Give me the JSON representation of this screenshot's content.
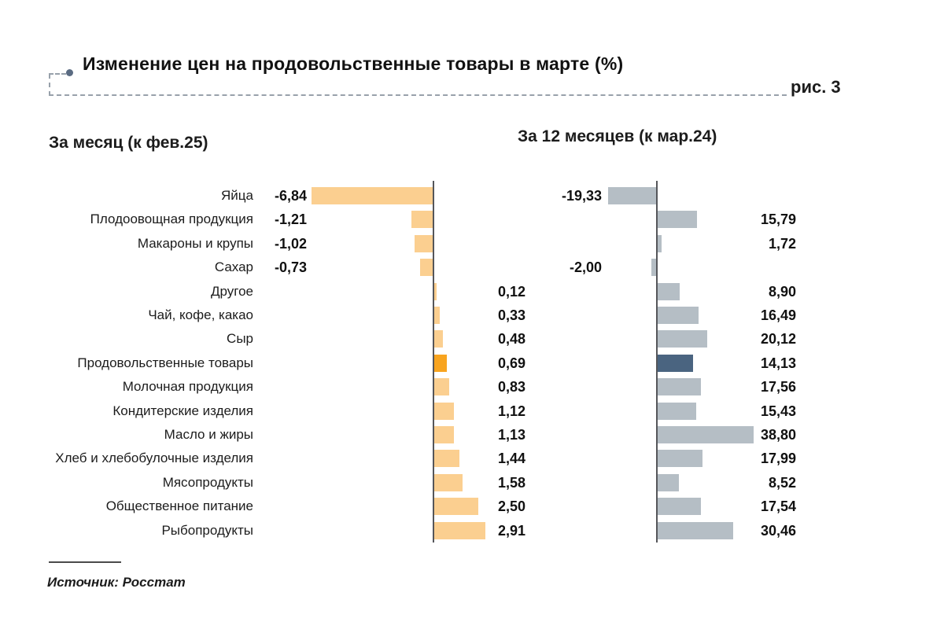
{
  "figure": {
    "title": "Изменение цен на продовольственные товары в марте (%)",
    "figure_label": "рис. 3",
    "source": "Источник: Росстат"
  },
  "chart_data": {
    "type": "bar",
    "orientation": "horizontal",
    "title": "Изменение цен на продовольственные товары в марте (%)",
    "categories": [
      "Яйца",
      "Плодоовощная продукция",
      "Макароны и крупы",
      "Сахар",
      "Другое",
      "Чай, кофе, какао",
      "Сыр",
      "Продовольственные товары",
      "Молочная продукция",
      "Кондитерские изделия",
      "Масло и жиры",
      "Хлеб и хлебобулочные изделия",
      "Мясопродукты",
      "Общественное питание",
      "Рыбопродукты"
    ],
    "highlight_category": "Продовольственные товары",
    "highlight_index": 7,
    "series": [
      {
        "name": "За месяц (к фев.25)",
        "values": [
          -6.84,
          -1.21,
          -1.02,
          -0.73,
          0.12,
          0.33,
          0.48,
          0.69,
          0.83,
          1.12,
          1.13,
          1.44,
          1.58,
          2.5,
          2.91
        ],
        "labels": [
          "-6,84",
          "-1,21",
          "-1,02",
          "-0,73",
          "0,12",
          "0,33",
          "0,48",
          "0,69",
          "0,83",
          "1,12",
          "1,13",
          "1,44",
          "1,58",
          "2,50",
          "2,91"
        ],
        "color": "#FBCF90",
        "highlight_color": "#F8A41F"
      },
      {
        "name": "За 12 месяцев (к мар.24)",
        "values": [
          -19.33,
          15.79,
          1.72,
          -2.0,
          8.9,
          16.49,
          20.12,
          14.13,
          17.56,
          15.43,
          38.8,
          17.99,
          8.52,
          17.54,
          30.46
        ],
        "labels": [
          "-19,33",
          "15,79",
          "1,72",
          "-2,00",
          "8,90",
          "16,49",
          "20,12",
          "14,13",
          "17,56",
          "15,43",
          "38,80",
          "17,99",
          "8,52",
          "17,54",
          "30,46"
        ],
        "color": "#B5BEC5",
        "highlight_color": "#4A6480"
      }
    ],
    "axis_color": "#55565a",
    "grid": false,
    "legend_position": "none",
    "value_labels_shown": true
  }
}
